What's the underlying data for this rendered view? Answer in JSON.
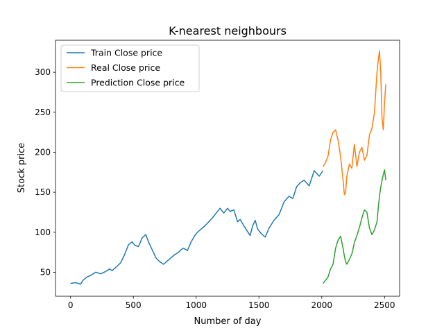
{
  "chart_data": {
    "type": "line",
    "title": "K-nearest neighbours",
    "xlabel": "Number of day",
    "ylabel": "Stock price",
    "xlim": [
      -120,
      2620
    ],
    "ylim": [
      20,
      340
    ],
    "xticks": [
      0,
      500,
      1000,
      1500,
      2000,
      2500
    ],
    "yticks": [
      50,
      100,
      150,
      200,
      250,
      300
    ],
    "grid": false,
    "legend_position": "top-left",
    "series": [
      {
        "name": "Train Close price",
        "color": "#1f77b4",
        "x": [
          0,
          40,
          80,
          100,
          130,
          160,
          200,
          240,
          280,
          310,
          330,
          360,
          400,
          430,
          460,
          490,
          510,
          540,
          570,
          600,
          620,
          650,
          680,
          710,
          740,
          770,
          800,
          830,
          860,
          880,
          900,
          930,
          960,
          990,
          1010,
          1040,
          1070,
          1100,
          1130,
          1160,
          1190,
          1220,
          1250,
          1270,
          1300,
          1330,
          1350,
          1380,
          1400,
          1430,
          1450,
          1470,
          1490,
          1520,
          1550,
          1580,
          1620,
          1660,
          1700,
          1740,
          1770,
          1800,
          1830,
          1860,
          1900,
          1940,
          1980,
          2010
        ],
        "y": [
          36,
          37,
          35,
          40,
          44,
          46,
          50,
          48,
          51,
          54,
          52,
          56,
          62,
          72,
          84,
          88,
          84,
          82,
          93,
          97,
          88,
          78,
          68,
          63,
          60,
          64,
          68,
          72,
          75,
          78,
          80,
          77,
          88,
          96,
          100,
          104,
          108,
          113,
          118,
          124,
          130,
          124,
          130,
          126,
          128,
          113,
          116,
          108,
          103,
          96,
          108,
          115,
          104,
          98,
          94,
          105,
          115,
          122,
          138,
          145,
          142,
          157,
          162,
          165,
          158,
          177,
          170,
          177
        ]
      },
      {
        "name": "Real Close price",
        "color": "#ff7f0e",
        "x": [
          2010,
          2030,
          2050,
          2070,
          2090,
          2110,
          2130,
          2150,
          2170,
          2180,
          2190,
          2200,
          2220,
          2240,
          2260,
          2280,
          2300,
          2320,
          2340,
          2360,
          2380,
          2400,
          2420,
          2440,
          2450,
          2460,
          2470,
          2480,
          2490,
          2500,
          2510
        ],
        "y": [
          182,
          187,
          195,
          215,
          225,
          228,
          215,
          195,
          165,
          147,
          150,
          170,
          185,
          180,
          210,
          182,
          200,
          206,
          190,
          196,
          222,
          230,
          250,
          300,
          315,
          327,
          300,
          242,
          228,
          262,
          285
        ]
      },
      {
        "name": "Prediction Close price",
        "color": "#2ca02c",
        "x": [
          2010,
          2030,
          2050,
          2070,
          2090,
          2110,
          2130,
          2150,
          2170,
          2180,
          2190,
          2200,
          2220,
          2240,
          2260,
          2280,
          2300,
          2320,
          2340,
          2360,
          2380,
          2400,
          2420,
          2440,
          2450,
          2460,
          2470,
          2480,
          2490,
          2500,
          2510
        ],
        "y": [
          36,
          40,
          44,
          54,
          60,
          80,
          90,
          95,
          80,
          70,
          63,
          60,
          66,
          73,
          87,
          96,
          106,
          118,
          128,
          125,
          105,
          97,
          103,
          113,
          130,
          145,
          156,
          165,
          172,
          178,
          165
        ]
      }
    ]
  }
}
